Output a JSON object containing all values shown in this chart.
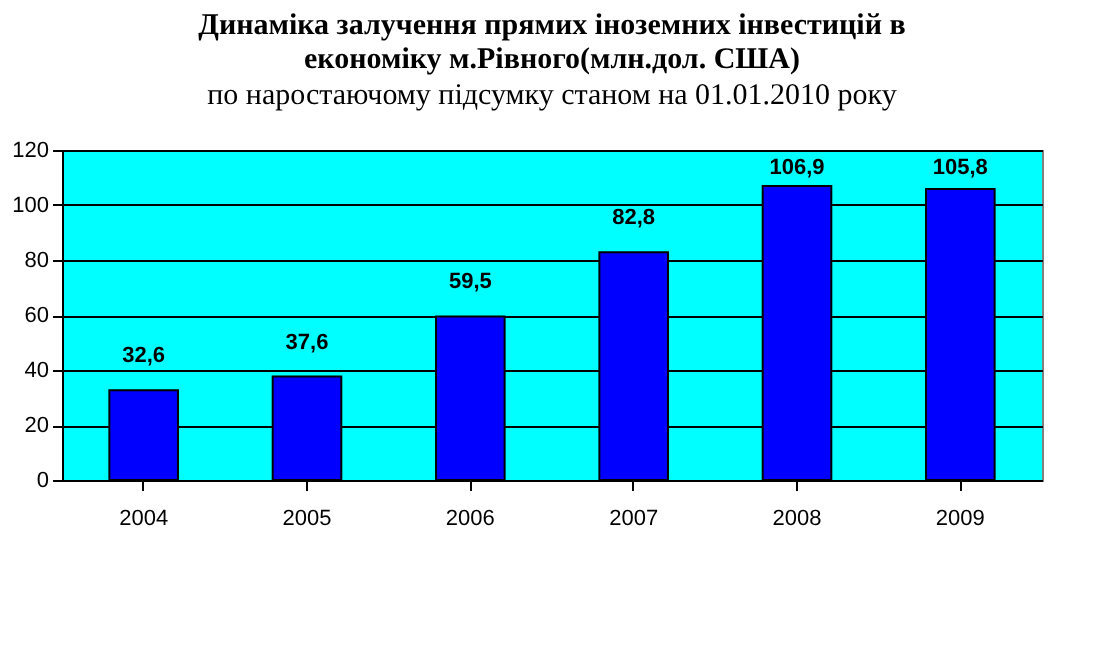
{
  "chart_data": {
    "type": "bar",
    "title": "Динаміка залучення  прямих іноземних інвестицій в економіку м.Рівного(млн.дол. США)",
    "subtitle": "по наростаючому підсумку станом на 01.01.2010 року",
    "categories": [
      "2004",
      "2005",
      "2006",
      "2007",
      "2008",
      "2009"
    ],
    "values": [
      32.6,
      37.6,
      59.5,
      82.8,
      106.9,
      105.8
    ],
    "value_labels": [
      "32,6",
      "37,6",
      "59,5",
      "82,8",
      "106,9",
      "105,8"
    ],
    "color": "#0000ff",
    "ylim": [
      0,
      120
    ],
    "yticks": [
      0,
      20,
      40,
      60,
      80,
      100,
      120
    ],
    "grid": "y"
  }
}
